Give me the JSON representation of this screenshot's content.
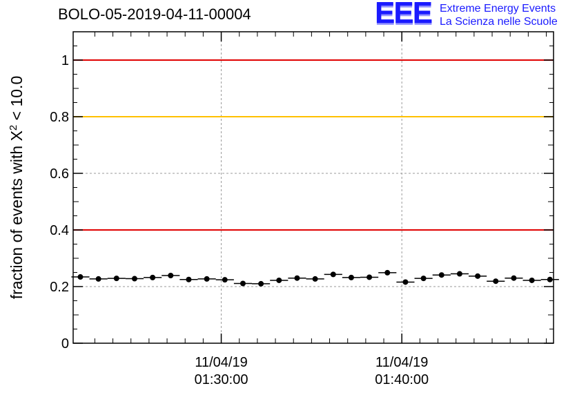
{
  "title": "BOLO-05-2019-04-11-00004",
  "logo": {
    "mark": "EEE",
    "line1": "Extreme Energy Events",
    "line2": "La Scienza nelle Scuole",
    "color": "#1a1aff"
  },
  "chart_data": {
    "type": "scatter",
    "title": "BOLO-05-2019-04-11-00004",
    "ylabel": "fraction of events with χ² < 10.0",
    "ylabel_parts": {
      "prefix": "fraction of events with X",
      "sup": "2",
      "suffix": " < 10.0"
    },
    "xlabel": "",
    "ylim": [
      0,
      1.1
    ],
    "y_ticks": [
      0,
      0.2,
      0.4,
      0.6,
      0.8,
      1
    ],
    "y_tick_labels": [
      "0",
      "0.2",
      "0.4",
      "0.6",
      "0.8",
      "1"
    ],
    "x_range_minutes": [
      21.8,
      48.4
    ],
    "x_major_ticks": [
      {
        "minute": 30,
        "label_date": "11/04/19",
        "label_time": "01:30:00"
      },
      {
        "minute": 40,
        "label_date": "11/04/19",
        "label_time": "01:40:00"
      }
    ],
    "x_minor_tick_minutes": [
      23,
      24,
      25,
      26,
      27,
      28,
      29,
      31,
      32,
      33,
      34,
      35,
      36,
      37,
      38,
      39,
      41,
      42,
      43,
      44,
      45,
      46,
      47,
      48
    ],
    "grid": true,
    "reference_lines": [
      {
        "y": 1.0,
        "color": "#e00000"
      },
      {
        "y": 0.8,
        "color": "#ffc000"
      },
      {
        "y": 0.4,
        "color": "#e00000"
      }
    ],
    "bin_width_minutes": 1,
    "x_minutes": [
      22.2,
      23.2,
      24.2,
      25.2,
      26.2,
      27.2,
      28.2,
      29.2,
      30.2,
      31.2,
      32.2,
      33.2,
      34.2,
      35.2,
      36.2,
      37.2,
      38.2,
      39.2,
      40.2,
      41.2,
      42.2,
      43.2,
      44.2,
      45.2,
      46.2,
      47.2,
      48.2
    ],
    "values": [
      0.234,
      0.227,
      0.229,
      0.228,
      0.232,
      0.239,
      0.225,
      0.227,
      0.224,
      0.211,
      0.21,
      0.222,
      0.23,
      0.227,
      0.243,
      0.232,
      0.233,
      0.249,
      0.216,
      0.229,
      0.241,
      0.245,
      0.237,
      0.219,
      0.23,
      0.222,
      0.225
    ],
    "marker_color": "#000000"
  }
}
